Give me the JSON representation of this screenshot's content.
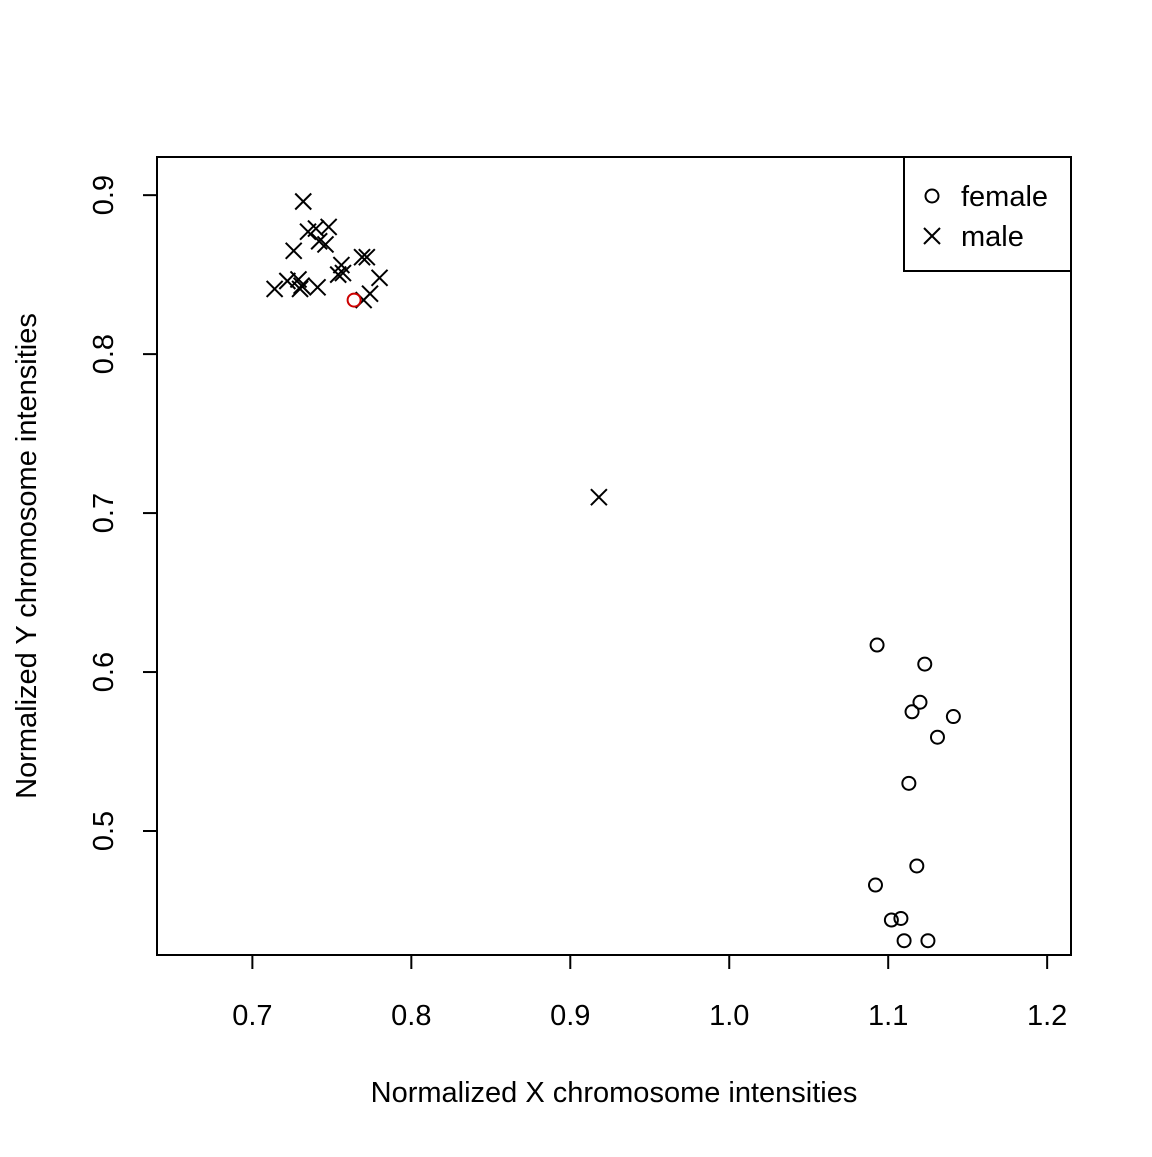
{
  "chart_data": {
    "type": "scatter",
    "title": "",
    "xlabel": "Normalized X chromosome intensities",
    "ylabel": "Normalized Y chromosome intensities",
    "xlim": [
      0.64,
      1.215
    ],
    "ylim": [
      0.422,
      0.924
    ],
    "x_ticks": [
      0.7,
      0.8,
      0.9,
      1.0,
      1.1,
      1.2
    ],
    "x_tick_labels": [
      "0.7",
      "0.8",
      "0.9",
      "1.0",
      "1.1",
      "1.2"
    ],
    "y_ticks": [
      0.5,
      0.6,
      0.7,
      0.8,
      0.9
    ],
    "y_tick_labels": [
      "0.5",
      "0.6",
      "0.7",
      "0.8",
      "0.9"
    ],
    "grid": false,
    "legend_position": "top-right",
    "legend": [
      {
        "label": "female",
        "marker": "circle"
      },
      {
        "label": "male",
        "marker": "cross"
      }
    ],
    "series": [
      {
        "name": "female",
        "marker": "circle",
        "color": "#000000",
        "points": [
          [
            1.093,
            0.617
          ],
          [
            1.123,
            0.605
          ],
          [
            1.12,
            0.581
          ],
          [
            1.115,
            0.575
          ],
          [
            1.141,
            0.572
          ],
          [
            1.131,
            0.559
          ],
          [
            1.113,
            0.53
          ],
          [
            1.118,
            0.478
          ],
          [
            1.092,
            0.466
          ],
          [
            1.102,
            0.444
          ],
          [
            1.108,
            0.445
          ],
          [
            1.11,
            0.431
          ],
          [
            1.125,
            0.431
          ]
        ]
      },
      {
        "name": "male",
        "marker": "cross",
        "color": "#000000",
        "points": [
          [
            0.732,
            0.896
          ],
          [
            0.748,
            0.88
          ],
          [
            0.735,
            0.877
          ],
          [
            0.74,
            0.879
          ],
          [
            0.742,
            0.871
          ],
          [
            0.746,
            0.869
          ],
          [
            0.726,
            0.865
          ],
          [
            0.769,
            0.861
          ],
          [
            0.772,
            0.861
          ],
          [
            0.756,
            0.856
          ],
          [
            0.754,
            0.85
          ],
          [
            0.757,
            0.851
          ],
          [
            0.78,
            0.848
          ],
          [
            0.722,
            0.846
          ],
          [
            0.729,
            0.847
          ],
          [
            0.731,
            0.843
          ],
          [
            0.741,
            0.842
          ],
          [
            0.714,
            0.841
          ],
          [
            0.73,
            0.841
          ],
          [
            0.774,
            0.838
          ],
          [
            0.77,
            0.834
          ],
          [
            0.918,
            0.71
          ]
        ]
      },
      {
        "marker": "circle",
        "color": "#cc0000",
        "points": [
          [
            0.764,
            0.834
          ]
        ]
      }
    ]
  }
}
